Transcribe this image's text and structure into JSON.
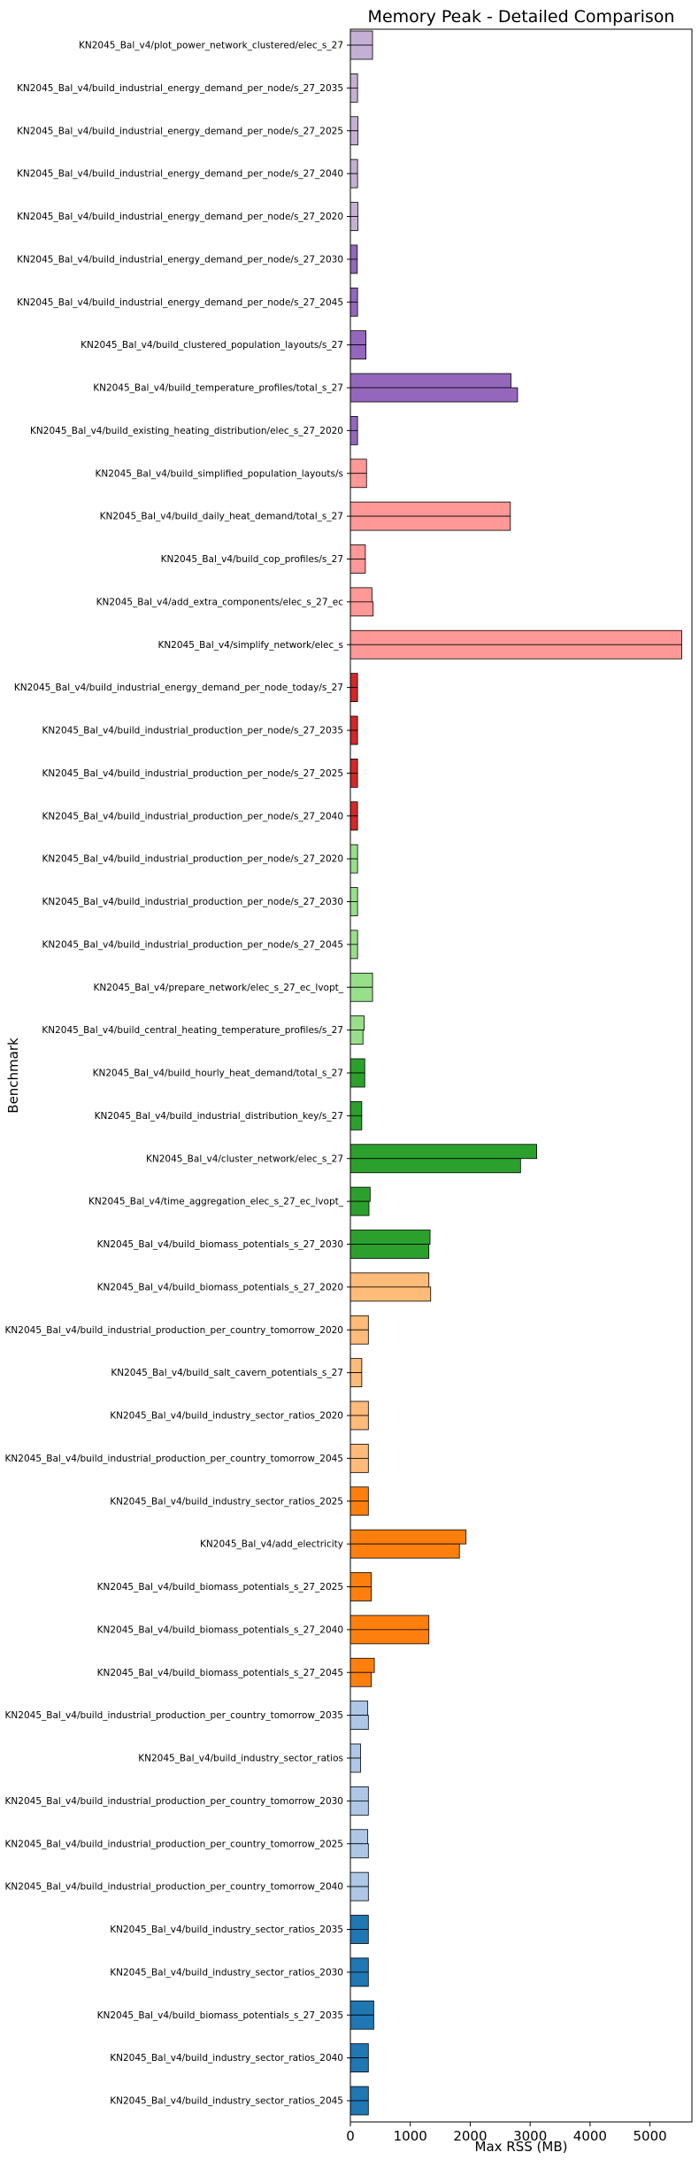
{
  "chart_data": {
    "type": "bar",
    "orientation": "horizontal",
    "title": "Memory Peak - Detailed Comparison",
    "xlabel": "Max RSS (MB)",
    "ylabel": "Benchmark",
    "xlim": [
      0,
      5700
    ],
    "xticks": [
      0,
      1000,
      2000,
      3000,
      4000,
      5000
    ],
    "grid": false,
    "legend": "none",
    "categories": [
      {
        "label": "KN2045_Bal_v4/plot_power_network_clustered/elec_s_27",
        "values": [
          370,
          370
        ],
        "color": "#c5b0d5"
      },
      {
        "label": "KN2045_Bal_v4/build_industrial_energy_demand_per_node/s_27_2035",
        "values": [
          120,
          120
        ],
        "color": "#c5b0d5"
      },
      {
        "label": "KN2045_Bal_v4/build_industrial_energy_demand_per_node/s_27_2025",
        "values": [
          125,
          125
        ],
        "color": "#c5b0d5"
      },
      {
        "label": "KN2045_Bal_v4/build_industrial_energy_demand_per_node/s_27_2040",
        "values": [
          120,
          120
        ],
        "color": "#c5b0d5"
      },
      {
        "label": "KN2045_Bal_v4/build_industrial_energy_demand_per_node/s_27_2020",
        "values": [
          125,
          125
        ],
        "color": "#c5b0d5"
      },
      {
        "label": "KN2045_Bal_v4/build_industrial_energy_demand_per_node/s_27_2030",
        "values": [
          115,
          115
        ],
        "color": "#9467bd"
      },
      {
        "label": "KN2045_Bal_v4/build_industrial_energy_demand_per_node/s_27_2045",
        "values": [
          120,
          120
        ],
        "color": "#9467bd"
      },
      {
        "label": "KN2045_Bal_v4/build_clustered_population_layouts/s_27",
        "values": [
          260,
          260
        ],
        "color": "#9467bd"
      },
      {
        "label": "KN2045_Bal_v4/build_temperature_profiles/total_s_27",
        "values": [
          2680,
          2790
        ],
        "color": "#9467bd"
      },
      {
        "label": "KN2045_Bal_v4/build_existing_heating_distribution/elec_s_27_2020",
        "values": [
          120,
          120
        ],
        "color": "#9467bd"
      },
      {
        "label": "KN2045_Bal_v4/build_simplified_population_layouts/s",
        "values": [
          270,
          270
        ],
        "color": "#ff9896"
      },
      {
        "label": "KN2045_Bal_v4/build_daily_heat_demand/total_s_27",
        "values": [
          2670,
          2670
        ],
        "color": "#ff9896"
      },
      {
        "label": "KN2045_Bal_v4/build_cop_profiles/s_27",
        "values": [
          250,
          250
        ],
        "color": "#ff9896"
      },
      {
        "label": "KN2045_Bal_v4/add_extra_components/elec_s_27_ec",
        "values": [
          360,
          380
        ],
        "color": "#ff9896"
      },
      {
        "label": "KN2045_Bal_v4/simplify_network/elec_s",
        "values": [
          5530,
          5530
        ],
        "color": "#ff9896"
      },
      {
        "label": "KN2045_Bal_v4/build_industrial_energy_demand_per_node_today/s_27",
        "values": [
          120,
          120
        ],
        "color": "#d62728"
      },
      {
        "label": "KN2045_Bal_v4/build_industrial_production_per_node/s_27_2035",
        "values": [
          120,
          120
        ],
        "color": "#d62728"
      },
      {
        "label": "KN2045_Bal_v4/build_industrial_production_per_node/s_27_2025",
        "values": [
          120,
          120
        ],
        "color": "#d62728"
      },
      {
        "label": "KN2045_Bal_v4/build_industrial_production_per_node/s_27_2040",
        "values": [
          120,
          120
        ],
        "color": "#d62728"
      },
      {
        "label": "KN2045_Bal_v4/build_industrial_production_per_node/s_27_2020",
        "values": [
          120,
          120
        ],
        "color": "#98df8a"
      },
      {
        "label": "KN2045_Bal_v4/build_industrial_production_per_node/s_27_2030",
        "values": [
          120,
          120
        ],
        "color": "#98df8a"
      },
      {
        "label": "KN2045_Bal_v4/build_industrial_production_per_node/s_27_2045",
        "values": [
          120,
          120
        ],
        "color": "#98df8a"
      },
      {
        "label": "KN2045_Bal_v4/prepare_network/elec_s_27_ec_lvopt_",
        "values": [
          370,
          370
        ],
        "color": "#98df8a"
      },
      {
        "label": "KN2045_Bal_v4/build_central_heating_temperature_profiles/s_27",
        "values": [
          230,
          210
        ],
        "color": "#98df8a"
      },
      {
        "label": "KN2045_Bal_v4/build_hourly_heat_demand/total_s_27",
        "values": [
          240,
          240
        ],
        "color": "#2ca02c"
      },
      {
        "label": "KN2045_Bal_v4/build_industrial_distribution_key/s_27",
        "values": [
          190,
          190
        ],
        "color": "#2ca02c"
      },
      {
        "label": "KN2045_Bal_v4/cluster_network/elec_s_27",
        "values": [
          3110,
          2840
        ],
        "color": "#2ca02c"
      },
      {
        "label": "KN2045_Bal_v4/time_aggregation_elec_s_27_ec_lvopt_",
        "values": [
          330,
          310
        ],
        "color": "#2ca02c"
      },
      {
        "label": "KN2045_Bal_v4/build_biomass_potentials_s_27_2030",
        "values": [
          1330,
          1310
        ],
        "color": "#2ca02c"
      },
      {
        "label": "KN2045_Bal_v4/build_biomass_potentials_s_27_2020",
        "values": [
          1310,
          1340
        ],
        "color": "#ffbb78"
      },
      {
        "label": "KN2045_Bal_v4/build_industrial_production_per_country_tomorrow_2020",
        "values": [
          300,
          300
        ],
        "color": "#ffbb78"
      },
      {
        "label": "KN2045_Bal_v4/build_salt_cavern_potentials_s_27",
        "values": [
          190,
          190
        ],
        "color": "#ffbb78"
      },
      {
        "label": "KN2045_Bal_v4/build_industry_sector_ratios_2020",
        "values": [
          300,
          300
        ],
        "color": "#ffbb78"
      },
      {
        "label": "KN2045_Bal_v4/build_industrial_production_per_country_tomorrow_2045",
        "values": [
          300,
          300
        ],
        "color": "#ffbb78"
      },
      {
        "label": "KN2045_Bal_v4/build_industry_sector_ratios_2025",
        "values": [
          300,
          300
        ],
        "color": "#ff7f0e"
      },
      {
        "label": "KN2045_Bal_v4/add_electricity",
        "values": [
          1930,
          1820
        ],
        "color": "#ff7f0e"
      },
      {
        "label": "KN2045_Bal_v4/build_biomass_potentials_s_27_2025",
        "values": [
          350,
          350
        ],
        "color": "#ff7f0e"
      },
      {
        "label": "KN2045_Bal_v4/build_biomass_potentials_s_27_2040",
        "values": [
          1310,
          1310
        ],
        "color": "#ff7f0e"
      },
      {
        "label": "KN2045_Bal_v4/build_biomass_potentials_s_27_2045",
        "values": [
          400,
          350
        ],
        "color": "#ff7f0e"
      },
      {
        "label": "KN2045_Bal_v4/build_industrial_production_per_country_tomorrow_2035",
        "values": [
          290,
          300
        ],
        "color": "#aec7e8"
      },
      {
        "label": "KN2045_Bal_v4/build_industry_sector_ratios",
        "values": [
          170,
          170
        ],
        "color": "#aec7e8"
      },
      {
        "label": "KN2045_Bal_v4/build_industrial_production_per_country_tomorrow_2030",
        "values": [
          300,
          300
        ],
        "color": "#aec7e8"
      },
      {
        "label": "KN2045_Bal_v4/build_industrial_production_per_country_tomorrow_2025",
        "values": [
          290,
          300
        ],
        "color": "#aec7e8"
      },
      {
        "label": "KN2045_Bal_v4/build_industrial_production_per_country_tomorrow_2040",
        "values": [
          300,
          300
        ],
        "color": "#aec7e8"
      },
      {
        "label": "KN2045_Bal_v4/build_industry_sector_ratios_2035",
        "values": [
          300,
          300
        ],
        "color": "#1f77b4"
      },
      {
        "label": "KN2045_Bal_v4/build_industry_sector_ratios_2030",
        "values": [
          300,
          300
        ],
        "color": "#1f77b4"
      },
      {
        "label": "KN2045_Bal_v4/build_biomass_potentials_s_27_2035",
        "values": [
          390,
          390
        ],
        "color": "#1f77b4"
      },
      {
        "label": "KN2045_Bal_v4/build_industry_sector_ratios_2040",
        "values": [
          300,
          300
        ],
        "color": "#1f77b4"
      },
      {
        "label": "KN2045_Bal_v4/build_industry_sector_ratios_2045",
        "values": [
          300,
          300
        ],
        "color": "#1f77b4"
      }
    ]
  }
}
